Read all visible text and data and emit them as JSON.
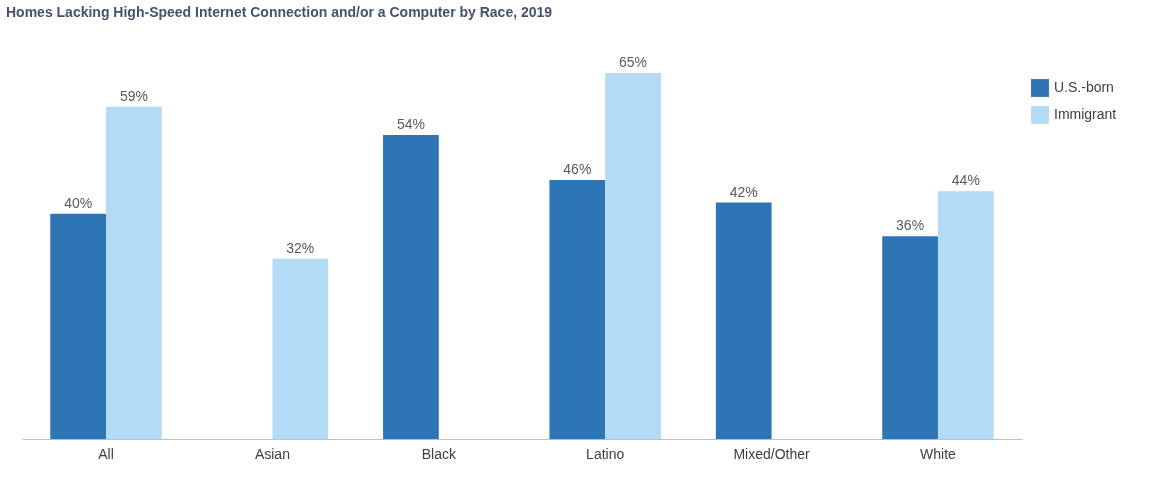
{
  "chart_data": {
    "type": "bar",
    "title": "Homes Lacking High-Speed Internet Connection and/or a Computer by Race, 2019",
    "categories": [
      "All",
      "Asian",
      "Black",
      "Latino",
      "Mixed/Other",
      "White"
    ],
    "series": [
      {
        "name": "U.S.-born",
        "color": "#2e75b6",
        "values": [
          40,
          null,
          54,
          46,
          42,
          36
        ],
        "value_labels": [
          "40%",
          null,
          "54%",
          "46%",
          "42%",
          "36%"
        ]
      },
      {
        "name": "Immigrant",
        "color": "#b4dbf5",
        "values": [
          59,
          32,
          null,
          65,
          null,
          44
        ],
        "value_labels": [
          "59%",
          "32%",
          null,
          "65%",
          null,
          "44%"
        ]
      }
    ],
    "legend": "top right"
  }
}
